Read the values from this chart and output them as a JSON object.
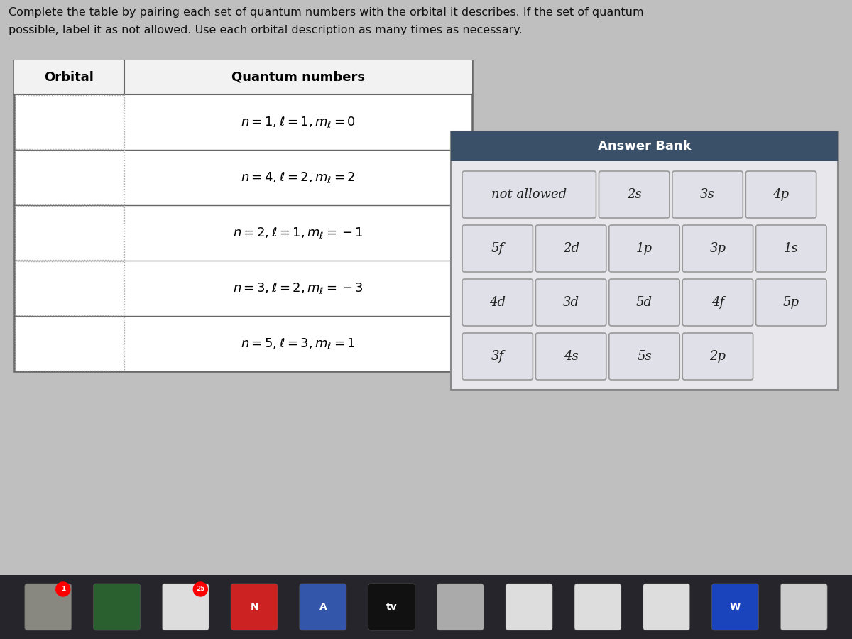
{
  "title_line1": "Complete the table by pairing each set of quantum numbers with the orbital it describes. If the set of quantum",
  "title_line2": "possible, label it as not allowed. Use each orbital description as many times as necessary.",
  "table_header_col1": "Orbital",
  "table_header_col2": "Quantum numbers",
  "quantum_rows": [
    "$n = 1, \\ell = 1, m_\\ell = 0$",
    "$n = 4, \\ell = 2, m_\\ell = 2$",
    "$n = 2, \\ell = 1, m_\\ell = -1$",
    "$n = 3, \\ell = 2, m_\\ell = -3$",
    "$n = 5, \\ell = 3, m_\\ell = 1$"
  ],
  "answer_bank_title": "Answer Bank",
  "answer_bank_rows": [
    [
      "not allowed",
      "2s",
      "3s",
      "4p"
    ],
    [
      "5f",
      "2d",
      "1p",
      "3p",
      "1s"
    ],
    [
      "4d",
      "3d",
      "5d",
      "4f",
      "5p"
    ],
    [
      "3f",
      "4s",
      "5s",
      "2p"
    ]
  ],
  "bg_color": "#c0bfc0",
  "table_bg": "#ffffff",
  "table_header_bg": "#f2f2f2",
  "table_border_color": "#666666",
  "table_dotted_color": "#aaaaaa",
  "ab_outer_bg": "#e8e8ec",
  "ab_title_bg": "#3a5068",
  "ab_title_text": "#ffffff",
  "ab_cell_bg": "#e0e0e8",
  "ab_cell_border": "#999999",
  "ab_cell_text": "#222222",
  "dock_bg": "#1a1a2a"
}
